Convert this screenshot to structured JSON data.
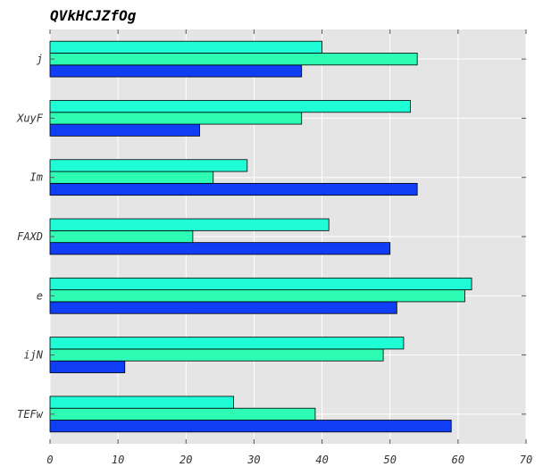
{
  "chart_data": {
    "type": "bar",
    "orientation": "horizontal",
    "title": "QVkHCJZfOg",
    "xlabel": "",
    "ylabel": "",
    "categories": [
      "TEFw",
      "ijN",
      "e",
      "FAXD",
      "Im",
      "XuyF",
      "j"
    ],
    "series": [
      {
        "values": [
          59,
          11,
          51,
          50,
          54,
          22,
          37
        ],
        "color": "#0f3ef5"
      },
      {
        "values": [
          39,
          49,
          61,
          21,
          24,
          37,
          54
        ],
        "color": "#2dfcb4"
      },
      {
        "values": [
          27,
          52,
          62,
          41,
          29,
          53,
          40
        ],
        "color": "#1efdd6"
      }
    ],
    "xlim": [
      0,
      70
    ],
    "xticks": [
      0,
      10,
      20,
      30,
      40,
      50,
      60,
      70
    ],
    "grid": true,
    "legend": "none",
    "background": "#e5e5e5"
  }
}
